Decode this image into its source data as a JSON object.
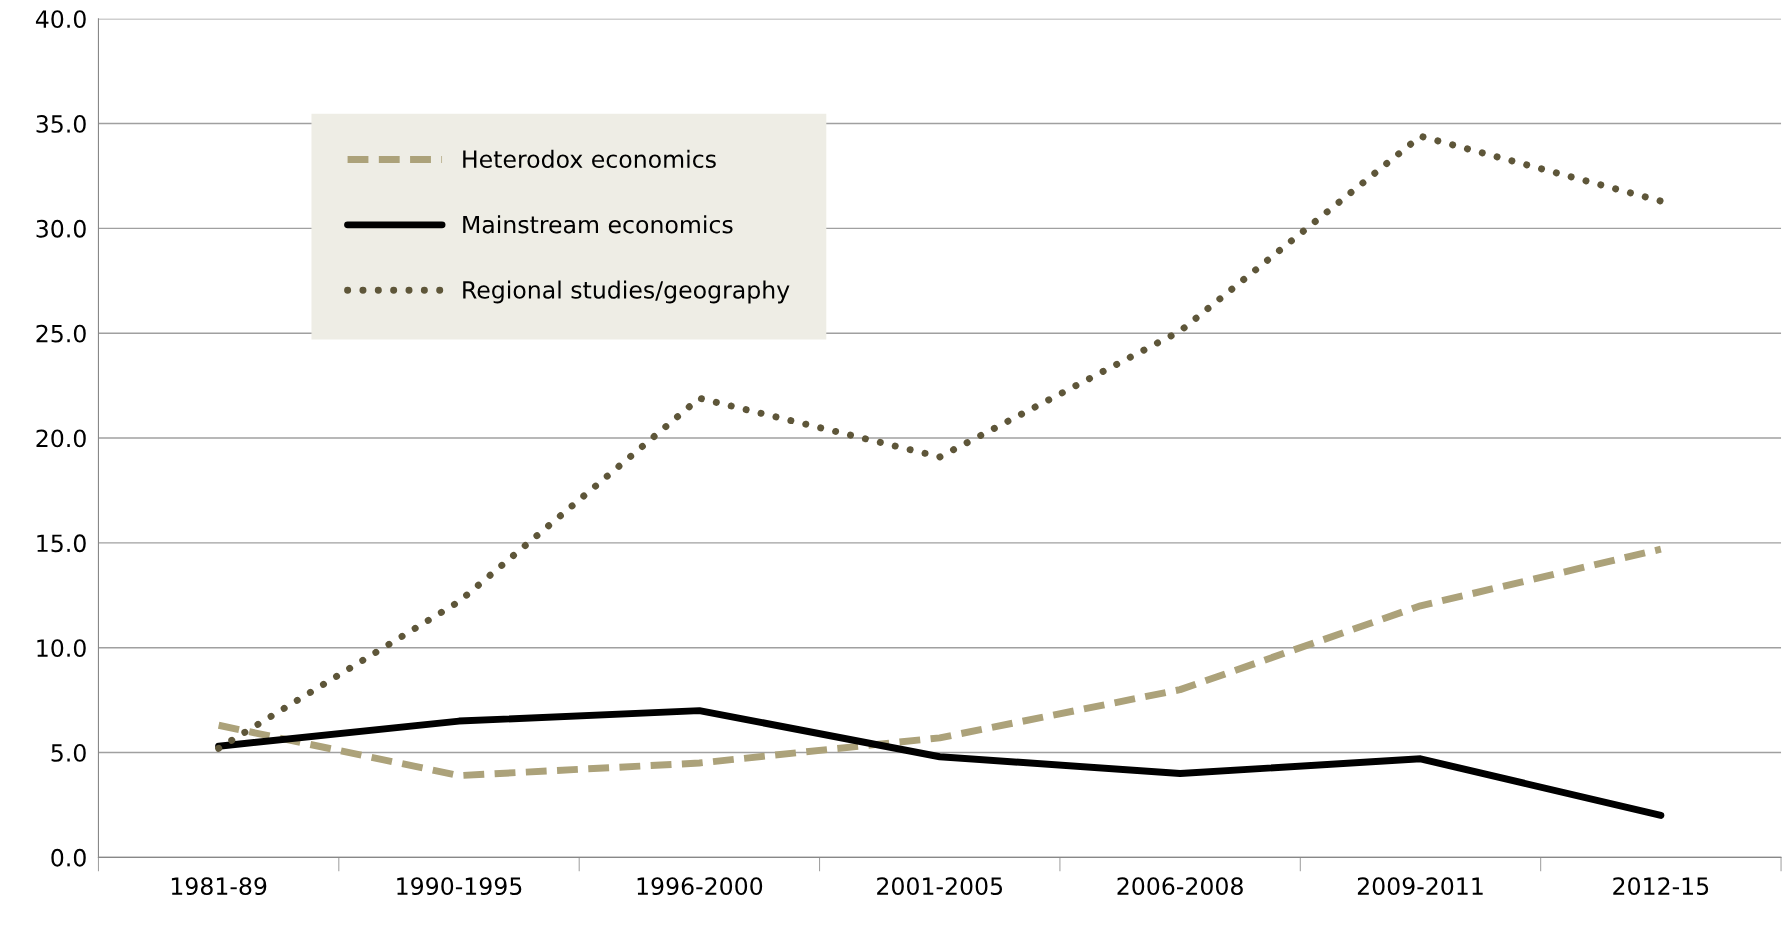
{
  "chart_data": {
    "type": "line",
    "categories": [
      "1981-89",
      "1990-1995",
      "1996-2000",
      "2001-2005",
      "2006-2008",
      "2009-2011",
      "2012-15"
    ],
    "series": [
      {
        "name": "Heterodox economics",
        "color": "#aca27a",
        "line_style": "dashed",
        "values": [
          6.3,
          3.9,
          4.5,
          5.7,
          8.0,
          12.0,
          14.7
        ]
      },
      {
        "name": "Mainstream economics",
        "color": "#000000",
        "line_style": "solid",
        "values": [
          5.3,
          6.5,
          7.0,
          4.8,
          4.0,
          4.7,
          2.0
        ]
      },
      {
        "name": "Regional studies/geography",
        "color": "#5e5639",
        "line_style": "dotted",
        "values": [
          5.2,
          12.2,
          21.9,
          19.1,
          25.1,
          34.4,
          31.3
        ]
      }
    ],
    "ylim": [
      0,
      40
    ],
    "yticks": [
      {
        "value": 0,
        "label": "0.0"
      },
      {
        "value": 5,
        "label": "5.0"
      },
      {
        "value": 10,
        "label": "10.0"
      },
      {
        "value": 15,
        "label": "15.0"
      },
      {
        "value": 20,
        "label": "20.0"
      },
      {
        "value": 25,
        "label": "25.0"
      },
      {
        "value": 30,
        "label": "30.0"
      },
      {
        "value": 35,
        "label": "35.0"
      },
      {
        "value": 40,
        "label": "40.0"
      }
    ],
    "grid": "y",
    "legend": "top left",
    "marker": "none"
  }
}
